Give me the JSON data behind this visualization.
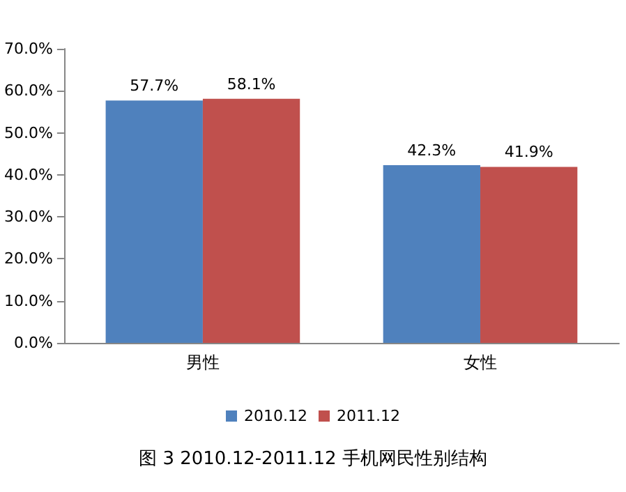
{
  "chart_data": {
    "type": "bar",
    "title": "图 3 2010.12-2011.12 手机网民性别结构",
    "categories": [
      "男性",
      "女性"
    ],
    "series": [
      {
        "name": "2010.12",
        "color": "#4f81bd",
        "values": [
          57.7,
          42.3
        ],
        "value_labels": [
          "57.7%",
          "42.3%"
        ]
      },
      {
        "name": "2011.12",
        "color": "#c0504d",
        "values": [
          58.1,
          41.9
        ],
        "value_labels": [
          "58.1%",
          "41.9%"
        ]
      }
    ],
    "ylim": [
      0,
      70
    ],
    "yticks": [
      {
        "value": 0,
        "label": "0.0%"
      },
      {
        "value": 10,
        "label": "10.0%"
      },
      {
        "value": 20,
        "label": "20.0%"
      },
      {
        "value": 30,
        "label": "30.0%"
      },
      {
        "value": 40,
        "label": "40.0%"
      },
      {
        "value": 50,
        "label": "50.0%"
      },
      {
        "value": 60,
        "label": "60.0%"
      },
      {
        "value": 70,
        "label": "70.0%"
      }
    ],
    "legend": "bottom"
  }
}
